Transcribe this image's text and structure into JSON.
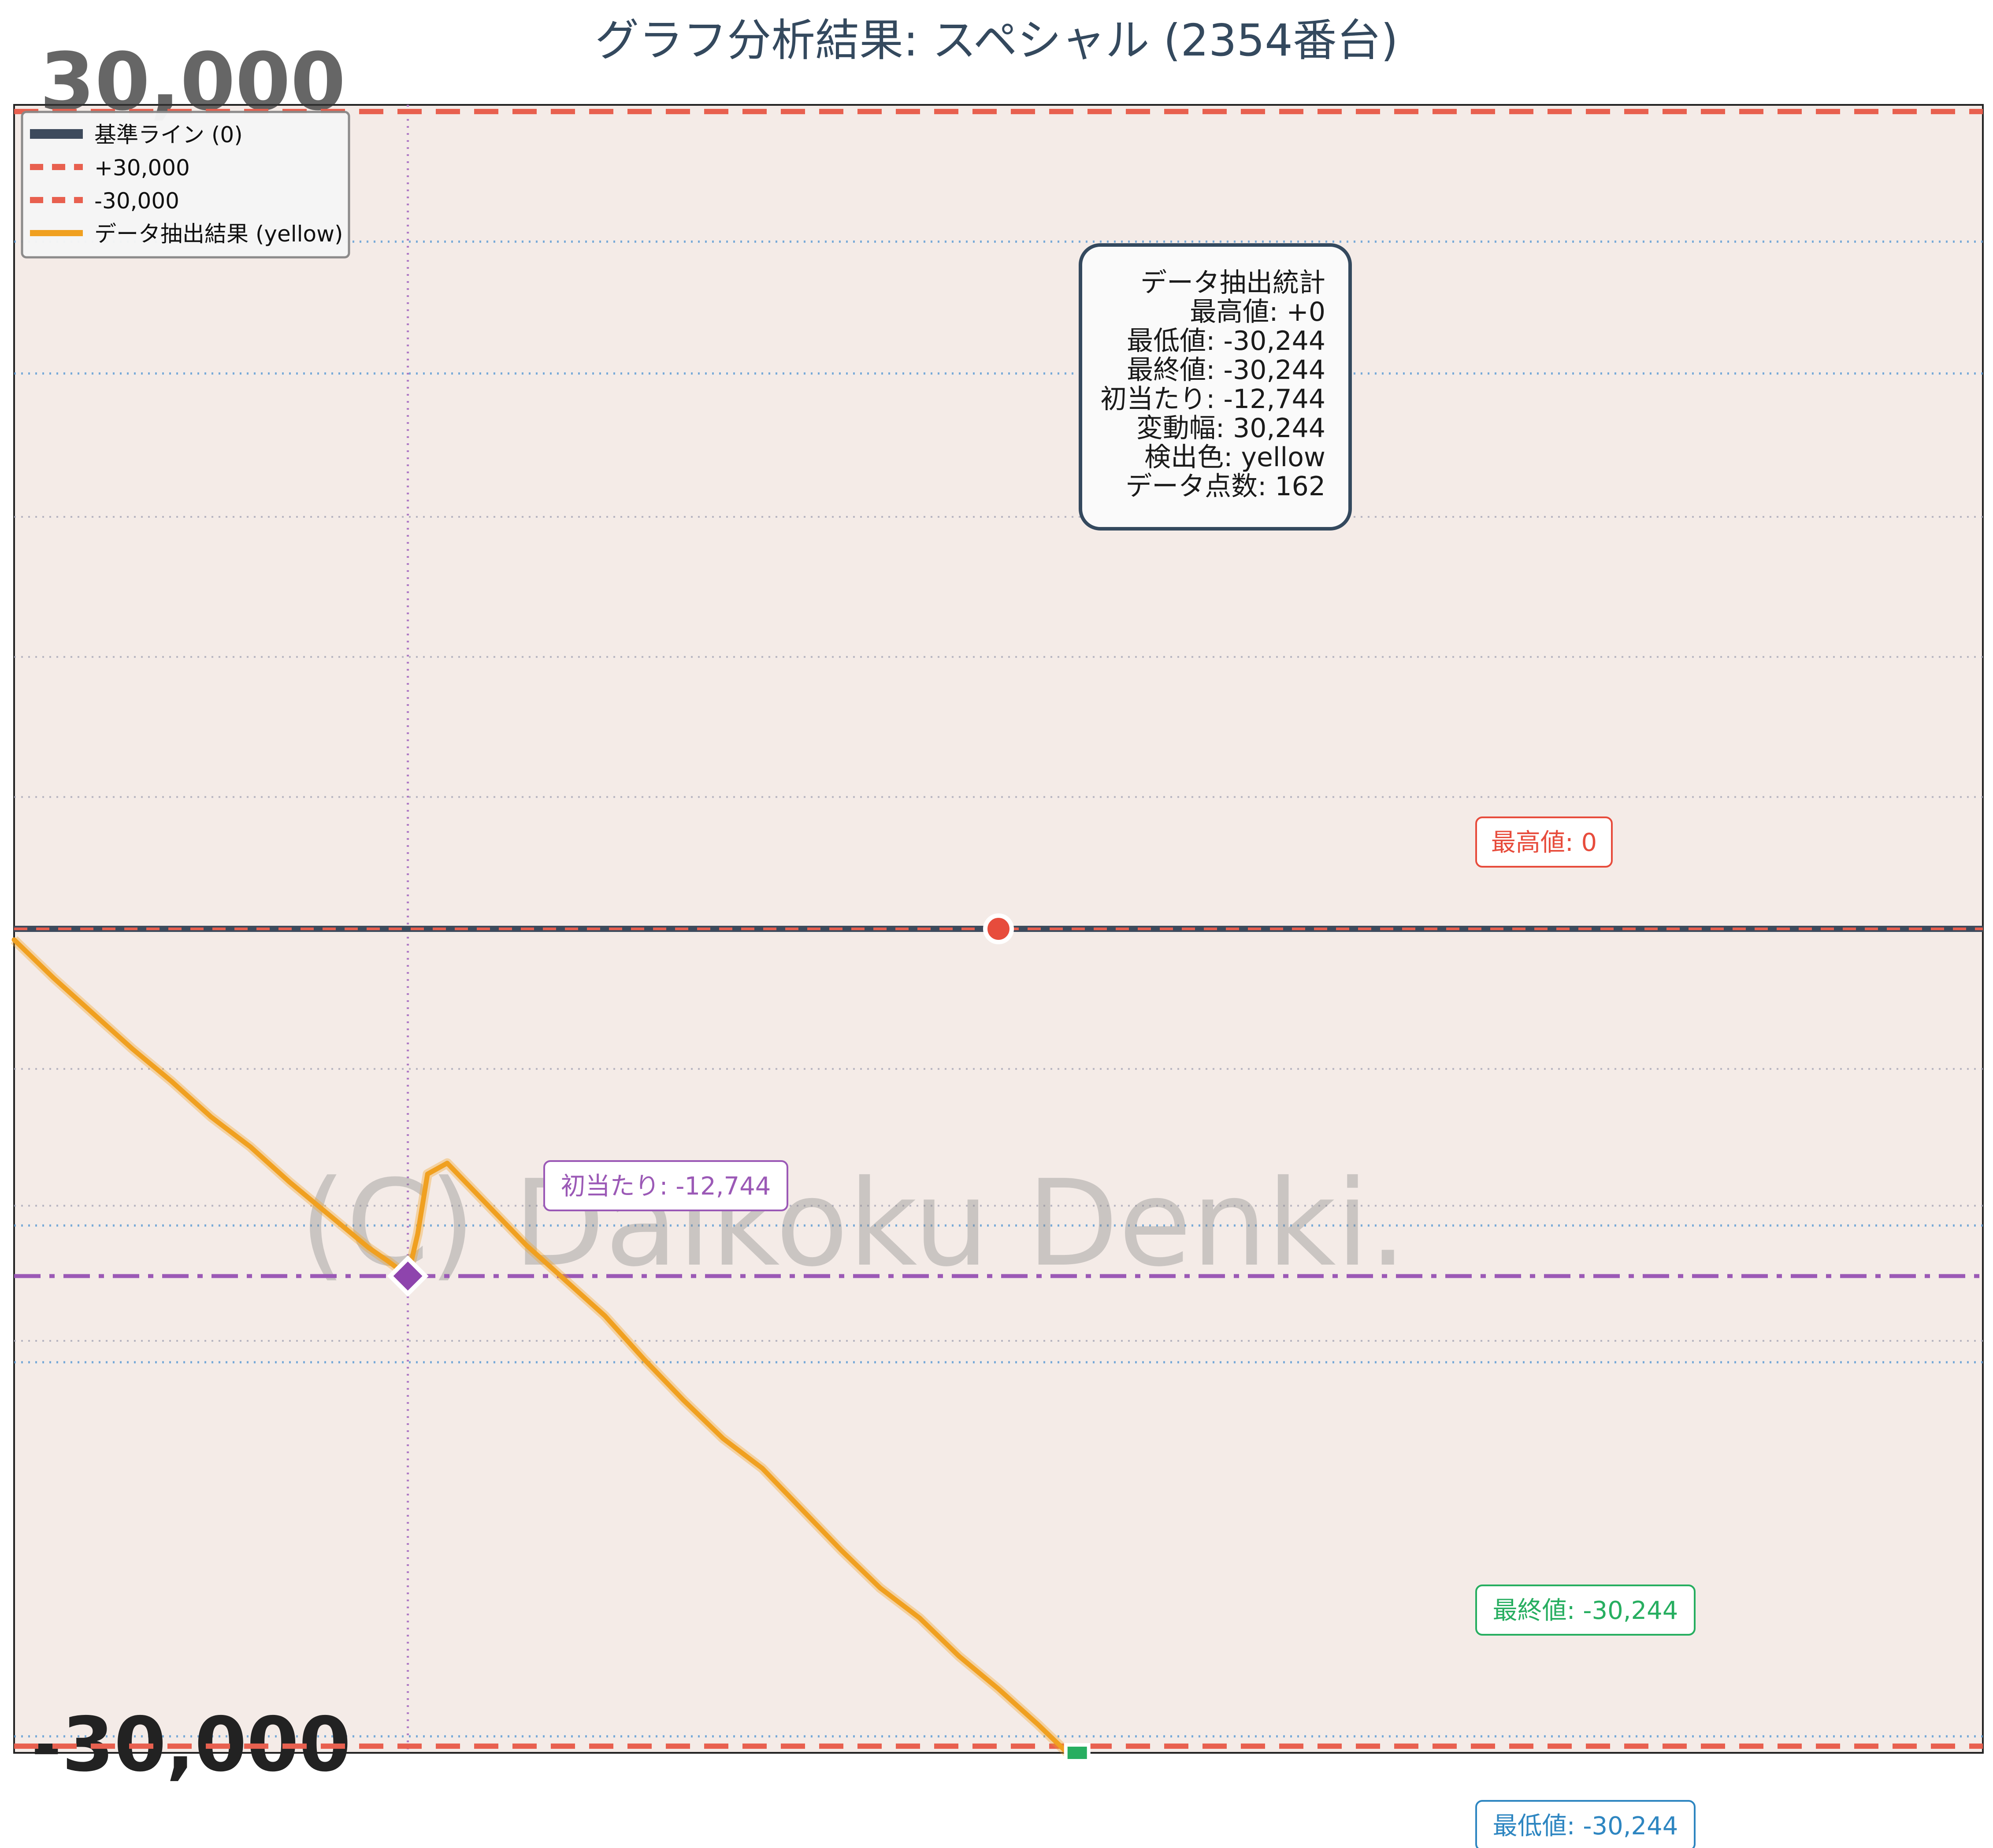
{
  "title": "グラフ分析結果: スペシャル (2354番台)",
  "chart_data": {
    "type": "line",
    "ylim": [
      -30244,
      30244
    ],
    "grid": true,
    "legend_position": "top-left",
    "watermark": "(C) Daikoku Denki.",
    "image_axis_labels": {
      "top": "30,000",
      "bottom": "-30,000"
    },
    "reference_lines": [
      {
        "name": "基準ライン (0)",
        "value": 0,
        "color": "#3d4a5c",
        "style": "solid"
      },
      {
        "name": "+30,000",
        "value": 30000,
        "color": "#e8604f",
        "style": "dashed"
      },
      {
        "name": "-30,000",
        "value": -30000,
        "color": "#e8604f",
        "style": "dashed"
      },
      {
        "name": "初当たり",
        "value": -12744,
        "color": "#9b59b6",
        "style": "dashdot"
      }
    ],
    "series": [
      {
        "name": "データ抽出結果 (yellow)",
        "color": "#f0a020",
        "x": [
          0,
          0.02,
          0.04,
          0.06,
          0.08,
          0.1,
          0.12,
          0.14,
          0.16,
          0.18,
          0.19,
          0.2,
          0.205,
          0.21,
          0.22,
          0.24,
          0.26,
          0.28,
          0.3,
          0.32,
          0.34,
          0.36,
          0.38,
          0.4,
          0.42,
          0.44,
          0.46,
          0.48,
          0.5,
          0.52,
          0.535
        ],
        "y": [
          -400,
          -1800,
          -3100,
          -4400,
          -5600,
          -6900,
          -8000,
          -9300,
          -10500,
          -11700,
          -12200,
          -12744,
          -11200,
          -9000,
          -8600,
          -10100,
          -11600,
          -12900,
          -14200,
          -15800,
          -17300,
          -18700,
          -19800,
          -21300,
          -22800,
          -24200,
          -25300,
          -26700,
          -27900,
          -29200,
          -30244
        ]
      }
    ],
    "markers": [
      {
        "name": "最高値",
        "x": 0.5,
        "value": 0,
        "color": "#e74c3c",
        "shape": "circle"
      },
      {
        "name": "初当たり",
        "x": 0.2,
        "value": -12744,
        "color": "#8e44ad",
        "shape": "diamond"
      },
      {
        "name": "最低値",
        "x": 0.54,
        "value": -30244,
        "color": "#27ae60",
        "shape": "square"
      }
    ],
    "annotations": {
      "max": {
        "label": "最高値: 0",
        "color": "#e74c3c"
      },
      "first": {
        "label": "初当たり: -12,744",
        "color": "#9b59b6"
      },
      "final": {
        "label": "最終値: -30,244",
        "color": "#27ae60"
      },
      "min": {
        "label": "最低値: -30,244",
        "color": "#2e86c1"
      }
    },
    "stats_box": {
      "lines": [
        "データ抽出統計",
        "最高値: +0",
        "最低値: -30,244",
        "最終値: -30,244",
        "初当たり: -12,744",
        "変動幅: 30,244",
        "検出色: yellow",
        "データ点数: 162"
      ]
    }
  }
}
